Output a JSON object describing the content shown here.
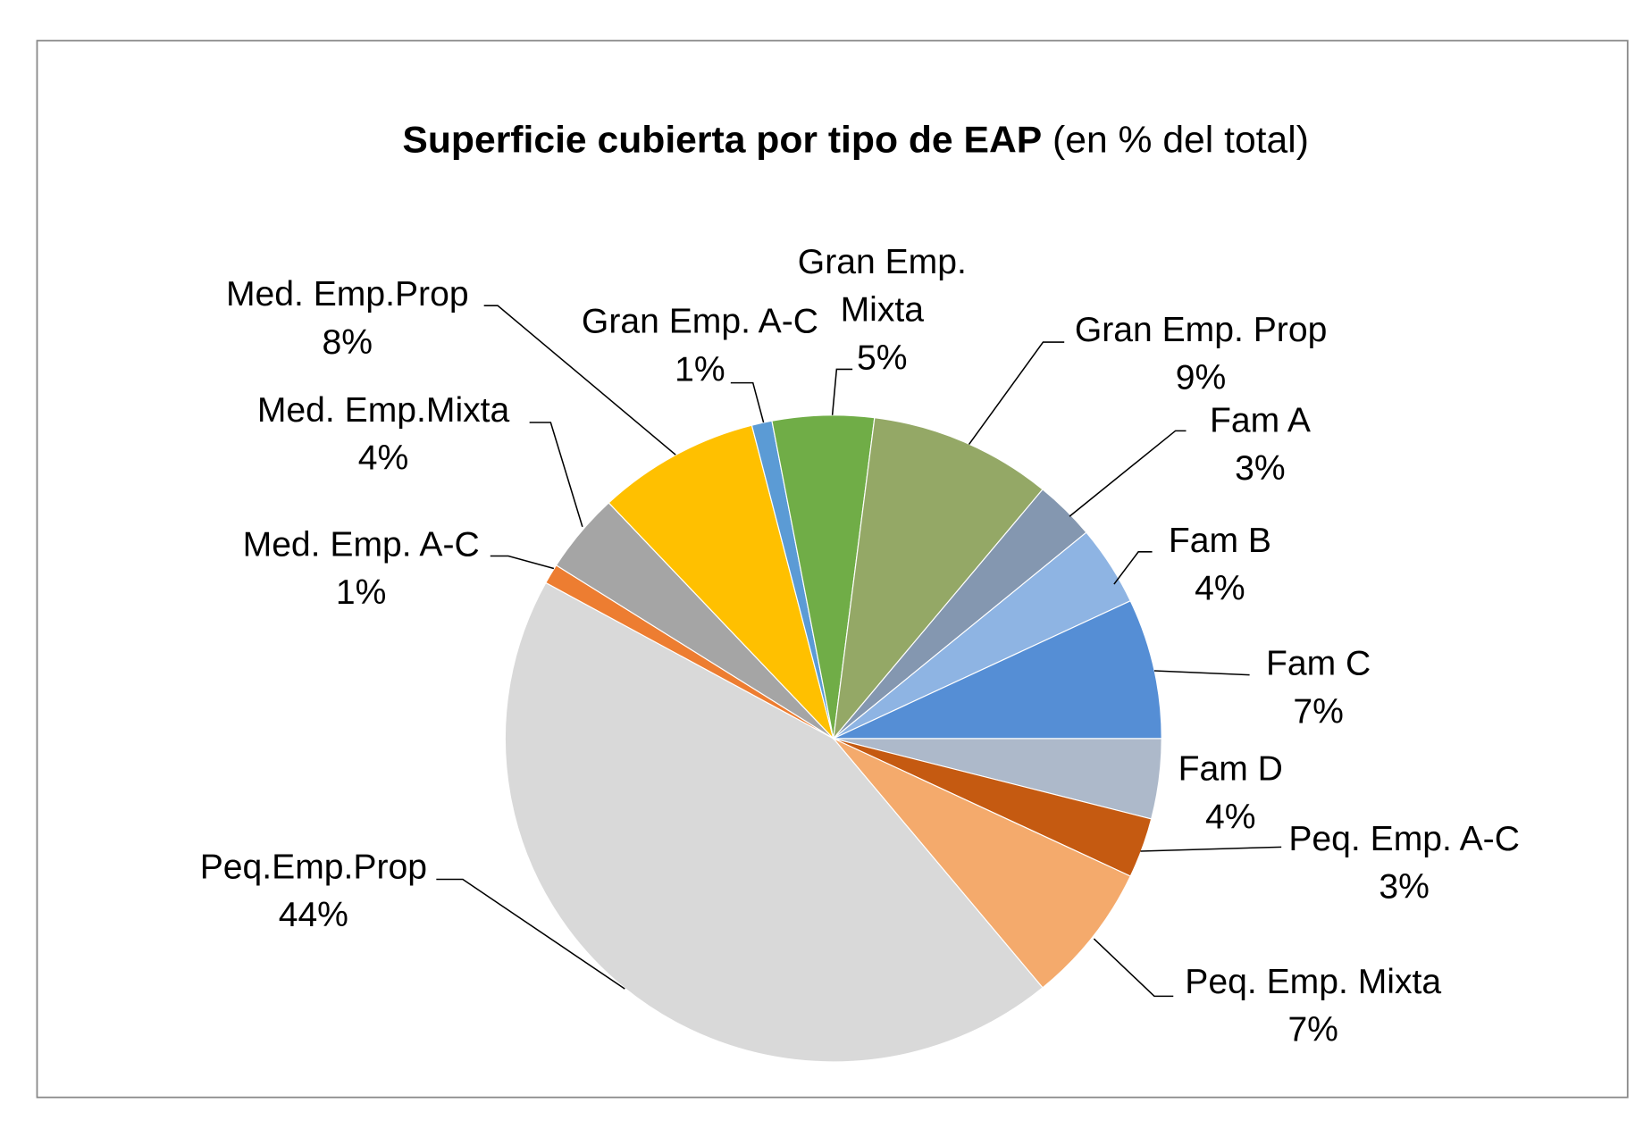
{
  "chart_data": {
    "type": "pie",
    "title_bold": "Superficie cubierta por tipo de EAP",
    "title_normal": "(en % del total)",
    "slices": [
      {
        "label": "Fam D",
        "value": 4,
        "value_label": "4%",
        "color": "#adb9ca"
      },
      {
        "label": "Peq. Emp. A-C",
        "value": 3,
        "value_label": "3%",
        "color": "#c55a11"
      },
      {
        "label": "Peq. Emp. Mixta",
        "value": 7,
        "value_label": "7%",
        "color": "#f4aa6c"
      },
      {
        "label": "Peq.Emp.Prop",
        "value": 44,
        "value_label": "44%",
        "color": "#d9d9d9"
      },
      {
        "label": "Med. Emp. A-C",
        "value": 1,
        "value_label": "1%",
        "color": "#ed7d31"
      },
      {
        "label": "Med. Emp.Mixta",
        "value": 4,
        "value_label": "4%",
        "color": "#a5a5a5"
      },
      {
        "label": "Med. Emp.Prop",
        "value": 8,
        "value_label": "8%",
        "color": "#ffc000"
      },
      {
        "label": "Gran Emp. A-C",
        "value": 1,
        "value_label": "1%",
        "color": "#5b9bd5"
      },
      {
        "label": "Gran Emp. Mixta",
        "value": 5,
        "value_label": "5%",
        "color": "#70ad47"
      },
      {
        "label": "Gran Emp. Prop",
        "value": 9,
        "value_label": "9%",
        "color": "#94a866"
      },
      {
        "label": "Fam A",
        "value": 3,
        "value_label": "3%",
        "color": "#8497b0"
      },
      {
        "label": "Fam B",
        "value": 4,
        "value_label": "4%",
        "color": "#8eb4e3"
      },
      {
        "label": "Fam C",
        "value": 7,
        "value_label": "7%",
        "color": "#558ed5"
      }
    ]
  }
}
